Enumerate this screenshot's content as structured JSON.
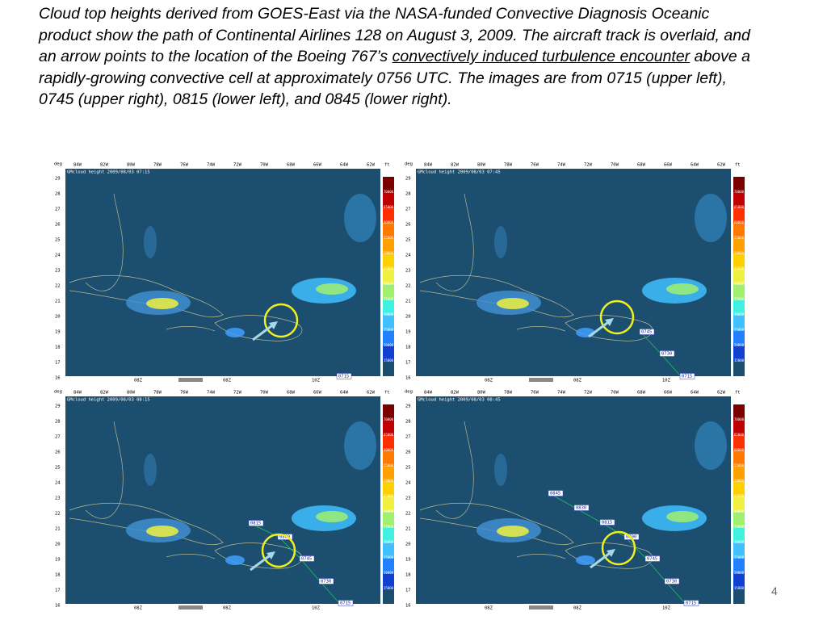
{
  "caption": {
    "before": "Cloud top heights derived from GOES-East via the NASA-funded Convective Diagnosis Oceanic product show the path of Continental Airlines 128 on August 3, 2009.  The aircraft track is overlaid, and an arrow points to the location of the Boeing 767’s ",
    "underlined": "convectively induced turbulence encounter",
    "after": " above a rapidly-growing convective cell at approximately 0756 UTC.  The images are from 0715 (upper left), 0745 (upper right), 0815 (lower left), and 0845 (lower right)."
  },
  "map_axes": {
    "corner": "deg",
    "unit": "ft",
    "lon_labels": [
      "84W",
      "82W",
      "80W",
      "78W",
      "76W",
      "74W",
      "72W",
      "70W",
      "68W",
      "66W",
      "64W",
      "62W"
    ],
    "lat_labels": [
      "29",
      "28",
      "27",
      "26",
      "25",
      "24",
      "23",
      "22",
      "21",
      "20",
      "19",
      "18",
      "17",
      "16"
    ],
    "colorbar_labels": [
      "70000",
      "65000",
      "60000",
      "55000",
      "50000",
      "45000",
      "40000",
      "35000",
      "30000",
      "25000",
      "20000",
      "15000"
    ],
    "bottom_labels": [
      "08Z",
      "08Z",
      "10Z"
    ]
  },
  "panels": [
    {
      "header": "GMcloud height  2009/08/03 07:15",
      "track_labels": [
        "0715"
      ]
    },
    {
      "header": "GMcloud height  2009/08/03 07:45",
      "track_labels": [
        "0745",
        "0730",
        "0715"
      ]
    },
    {
      "header": "GMcloud height  2009/08/03 08:15",
      "track_labels": [
        "0815",
        "0800",
        "0745",
        "0730",
        "0715"
      ]
    },
    {
      "header": "GMcloud height  2009/08/03 08:45",
      "track_labels": [
        "0845",
        "0830",
        "0815",
        "0800",
        "0745",
        "0730",
        "0715"
      ]
    }
  ],
  "page_number": "4"
}
